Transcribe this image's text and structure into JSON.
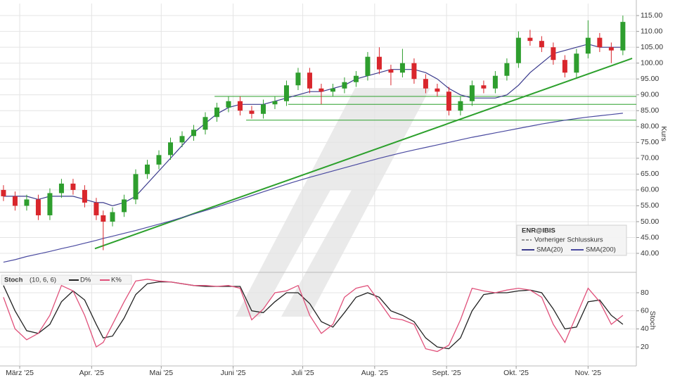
{
  "chart_data": [
    {
      "type": "candlestick",
      "y_label": "Kurs",
      "legend_title": "ENR@IBIS",
      "prev_close_label": "Vorheriger Schlusskurs",
      "up_color": "#2e9e2e",
      "down_color": "#d9262c",
      "xlim": [
        -7.5,
        266.8
      ],
      "ylim": [
        34.9,
        118.8
      ],
      "xticks": [
        {
          "value": 1,
          "label": "März '25"
        },
        {
          "value": 32,
          "label": "Apr. '25"
        },
        {
          "value": 62,
          "label": "Mai '25"
        },
        {
          "value": 93,
          "label": "Juni '25"
        },
        {
          "value": 123,
          "label": "Juli '25"
        },
        {
          "value": 154,
          "label": "Aug. '25"
        },
        {
          "value": 185,
          "label": "Sept. '25"
        },
        {
          "value": 215,
          "label": "Okt. '25"
        },
        {
          "value": 246,
          "label": "Nov. '25"
        }
      ],
      "yticks": [
        {
          "value": 40,
          "label": "40.00"
        },
        {
          "value": 45,
          "label": "45.00"
        },
        {
          "value": 50,
          "label": "50.00"
        },
        {
          "value": 55,
          "label": "55.00"
        },
        {
          "value": 60,
          "label": "60.00"
        },
        {
          "value": 65,
          "label": "65.00"
        },
        {
          "value": 70,
          "label": "70.00"
        },
        {
          "value": 75,
          "label": "75.00"
        },
        {
          "value": 80,
          "label": "80.00"
        },
        {
          "value": 85,
          "label": "85.00"
        },
        {
          "value": 90,
          "label": "90.00"
        },
        {
          "value": 95,
          "label": "95.00"
        },
        {
          "value": 100,
          "label": "100.00"
        },
        {
          "value": 105,
          "label": "105.00"
        },
        {
          "value": 110,
          "label": "110.00"
        },
        {
          "value": 115,
          "label": "115.00"
        }
      ],
      "grid": true,
      "x": [
        -6,
        -1,
        4,
        9,
        14,
        19,
        24,
        29,
        34,
        37,
        41,
        46,
        51,
        56,
        61,
        66,
        71,
        76,
        81,
        86,
        91,
        96,
        101,
        106,
        111,
        116,
        121,
        126,
        131,
        136,
        141,
        146,
        151,
        156,
        161,
        166,
        171,
        176,
        181,
        186,
        191,
        196,
        201,
        206,
        211,
        216,
        221,
        226,
        231,
        236,
        241,
        246,
        251,
        256,
        261
      ],
      "open": [
        60,
        58,
        55,
        57,
        52,
        59,
        62,
        60,
        56,
        52,
        50,
        53,
        57,
        65,
        68,
        71,
        75,
        77,
        79,
        83,
        86,
        88,
        85,
        84,
        87,
        88,
        93,
        97,
        92,
        91,
        92,
        94,
        96,
        102,
        98,
        97,
        100,
        95,
        92,
        91,
        85,
        88,
        93,
        92,
        96,
        100,
        108,
        107,
        105,
        101,
        97,
        103,
        108,
        105,
        104
      ],
      "high": [
        61.5,
        59.5,
        58.5,
        58.5,
        60.5,
        63.5,
        63.5,
        61.5,
        57.5,
        53.5,
        54.5,
        58.5,
        66.5,
        69.5,
        72.5,
        76.5,
        78.5,
        80.5,
        84.5,
        87.5,
        89.5,
        89.5,
        86.5,
        88.5,
        89.5,
        94.5,
        98.5,
        98.5,
        93.5,
        93.5,
        95.5,
        97.5,
        103.5,
        105,
        99.5,
        104.5,
        101.5,
        96.5,
        93.5,
        92.5,
        89.5,
        94.5,
        94.5,
        97.5,
        101.5,
        110,
        110.5,
        108.5,
        106.5,
        102.5,
        104.5,
        113.5,
        109.5,
        106.5,
        115
      ],
      "low": [
        56.5,
        53.5,
        53.5,
        50.5,
        50.5,
        57.5,
        58.5,
        54.5,
        50.5,
        41,
        48.5,
        51.5,
        55.5,
        63.5,
        66.5,
        69.5,
        73.5,
        75.5,
        77.5,
        81.5,
        84.5,
        83.5,
        82.5,
        82.5,
        85.5,
        86.5,
        91.5,
        90.5,
        87,
        89.5,
        90.5,
        92.5,
        94.5,
        96.5,
        93,
        95.5,
        93.5,
        90.5,
        89.5,
        83.5,
        83.5,
        86.5,
        90.5,
        90.5,
        94.5,
        98.5,
        105.5,
        103.5,
        99.5,
        95.5,
        95.5,
        101.5,
        103.5,
        100,
        102.5
      ],
      "close": [
        58,
        55,
        57,
        52,
        59,
        62,
        60,
        56,
        52,
        50,
        53,
        57,
        65,
        68,
        71,
        75,
        77,
        79,
        83,
        86,
        88,
        85,
        84,
        87,
        88,
        93,
        97,
        92,
        91,
        92,
        94,
        96,
        102,
        98,
        97,
        100,
        95,
        92,
        91,
        85,
        88,
        93,
        92,
        96,
        100,
        108,
        107,
        105,
        101,
        97,
        103,
        108,
        105,
        104,
        113
      ],
      "series": [
        {
          "name": "SMA(20)",
          "color": "#3a3a8c",
          "values": [
            58,
            58,
            58,
            57,
            58,
            58,
            58,
            57,
            56,
            56,
            55,
            56,
            58,
            62,
            66,
            70,
            74,
            78,
            81,
            84,
            86,
            87,
            87,
            87,
            88,
            89,
            90,
            91,
            91,
            92,
            93,
            95,
            96,
            97,
            98,
            98,
            98,
            97,
            95,
            92,
            90,
            89,
            89,
            89,
            90,
            93,
            97,
            100,
            103,
            104,
            105,
            106,
            105,
            105,
            105
          ]
        },
        {
          "name": "SMA(200)",
          "color": "#4a4aa0",
          "values": [
            37.2,
            38,
            39,
            39.8,
            40.6,
            41.5,
            42.3,
            43.2,
            44.1,
            44.7,
            45.4,
            46.3,
            47.2,
            48.2,
            49.2,
            50.2,
            51.3,
            52.4,
            53.5,
            54.6,
            55.8,
            57,
            58.2,
            59.4,
            60.6,
            61.8,
            62.9,
            64,
            65,
            66,
            67,
            68,
            69,
            70,
            70.9,
            71.8,
            72.6,
            73.4,
            74.2,
            75,
            75.8,
            76.6,
            77.3,
            78,
            78.7,
            79.4,
            80.1,
            80.8,
            81.4,
            82,
            82.5,
            83,
            83.4,
            83.8,
            84.2
          ]
        }
      ],
      "line_color": "#2ca02c",
      "lines": [
        {
          "x": [
            33.4,
            265
          ],
          "y": [
            41.5,
            101.5
          ]
        },
        {
          "x": [
            85,
            266.8
          ],
          "y": [
            89.5,
            89.5
          ]
        },
        {
          "x": [
            116.7,
            266.8
          ],
          "y": [
            87,
            87
          ]
        },
        {
          "x": [
            98.6,
            266.8
          ],
          "y": [
            82,
            82
          ]
        }
      ]
    },
    {
      "type": "line",
      "title": "Stoch",
      "params": "(10, 6, 6)",
      "y_label": "Stoch",
      "ylim": [
        -1,
        98.7
      ],
      "yticks": [
        20,
        40,
        60,
        80
      ],
      "grid": true,
      "series": [
        {
          "name": "D%",
          "color": "#222222",
          "values": [
            88,
            60,
            38,
            35,
            45,
            70,
            82,
            72,
            45,
            30,
            32,
            52,
            78,
            90,
            92,
            92,
            90,
            88,
            87,
            87,
            87,
            87,
            60,
            58,
            70,
            80,
            80,
            68,
            48,
            42,
            58,
            75,
            80,
            75,
            60,
            55,
            48,
            30,
            20,
            18,
            30,
            60,
            78,
            80,
            80,
            82,
            83,
            80,
            62,
            40,
            42,
            70,
            72,
            55,
            45
          ]
        },
        {
          "name": "K%",
          "color": "#e0507a",
          "values": [
            75,
            40,
            28,
            35,
            55,
            88,
            82,
            55,
            20,
            25,
            45,
            70,
            93,
            95,
            93,
            92,
            90,
            88,
            88,
            87,
            88,
            85,
            50,
            62,
            80,
            82,
            88,
            55,
            35,
            45,
            75,
            85,
            88,
            70,
            52,
            50,
            45,
            18,
            15,
            22,
            50,
            85,
            82,
            80,
            83,
            85,
            83,
            75,
            45,
            25,
            55,
            85,
            70,
            45,
            55
          ]
        }
      ]
    }
  ]
}
